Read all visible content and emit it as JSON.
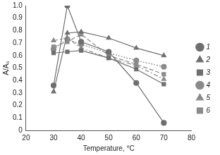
{
  "chart_data": {
    "type": "line",
    "x_label": "Temperature, °C",
    "y_label": "A/A₀",
    "x": [
      30,
      35,
      40,
      50,
      60,
      70
    ],
    "series": [
      {
        "name": "1",
        "color": "#6e6e6e",
        "marker": "circle",
        "line_style": "solid",
        "values": [
          0.36,
          1.0,
          0.71,
          0.63,
          0.38,
          0.06
        ]
      },
      {
        "name": "2",
        "color": "#6e6e6e",
        "marker": "triangle",
        "line_style": "solid",
        "values": [
          0.31,
          0.78,
          0.79,
          0.74,
          0.66,
          0.6
        ]
      },
      {
        "name": "3",
        "color": "#6e6e6e",
        "marker": "square",
        "line_style": "solid",
        "values": [
          0.62,
          0.63,
          0.64,
          0.58,
          0.49,
          0.37
        ]
      },
      {
        "name": "4",
        "color": "#8a8a8a",
        "marker": "circle",
        "line_style": "dotted",
        "values": [
          0.65,
          0.73,
          0.69,
          0.62,
          0.56,
          0.51
        ]
      },
      {
        "name": "5",
        "color": "#8a8a8a",
        "marker": "triangle",
        "line_style": "dashdot",
        "values": [
          0.72,
          0.74,
          0.66,
          0.58,
          0.52,
          0.41
        ]
      },
      {
        "name": "6",
        "color": "#8a8a8a",
        "marker": "square",
        "line_style": "dashed",
        "values": [
          0.67,
          0.71,
          0.77,
          0.6,
          0.53,
          0.45
        ]
      }
    ],
    "xlim": [
      20,
      80
    ],
    "xticks": [
      20,
      30,
      40,
      50,
      60,
      70,
      80
    ],
    "ylim": [
      0,
      1
    ],
    "yticks": [
      0,
      0.1,
      0.2,
      0.3,
      0.4,
      0.5,
      0.6,
      0.7,
      0.8,
      0.9,
      {
        "value": 1,
        "label": "1.0"
      }
    ],
    "grid": false,
    "legend": "right"
  }
}
